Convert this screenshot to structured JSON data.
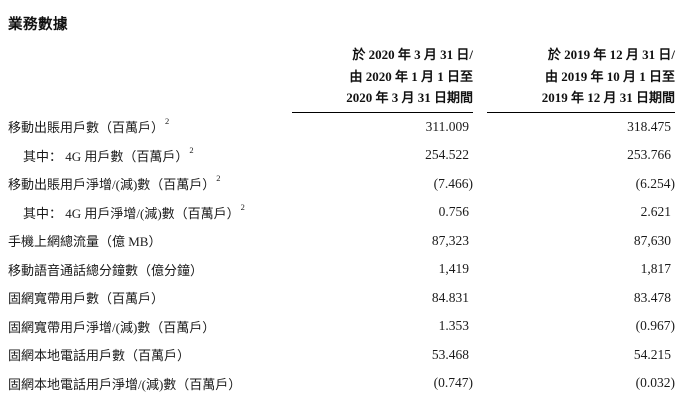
{
  "page": {
    "title": "業務數據",
    "background": "#ffffff",
    "text_color": "#111111"
  },
  "table": {
    "columns": [
      {
        "id": "as-of-2020-03-31",
        "header_lines": [
          "於 2020 年 3 月 31 日/",
          "由 2020 年 1 月 1 日至",
          "2020 年 3 月 31 日期間"
        ]
      },
      {
        "id": "as-of-2019-12-31",
        "header_lines": [
          "於 2019 年 12 月 31 日/",
          "由 2019 年 10 月 1 日至",
          "2019 年 12 月 31 日期間"
        ]
      }
    ],
    "rows": [
      {
        "label": "移動出賬用戶數（百萬戶）",
        "footnote_ref": "2",
        "indent": false,
        "values": [
          "311.009",
          "318.475"
        ]
      },
      {
        "label": "其中： 4G 用戶數（百萬戶）",
        "footnote_ref": "2",
        "indent": true,
        "values": [
          "254.522",
          "253.766"
        ]
      },
      {
        "label": "移動出賬用戶淨增/(減)數（百萬戶）",
        "footnote_ref": "2",
        "indent": false,
        "values": [
          "(7.466)",
          "(6.254)"
        ]
      },
      {
        "label": "其中： 4G 用戶淨增/(減)數（百萬戶）",
        "footnote_ref": "2",
        "indent": true,
        "values": [
          "0.756",
          "2.621"
        ]
      },
      {
        "label": "手機上網總流量（億 MB）",
        "footnote_ref": "",
        "indent": false,
        "values": [
          "87,323",
          "87,630"
        ]
      },
      {
        "label": "移動語音通話總分鐘數（億分鐘）",
        "footnote_ref": "",
        "indent": false,
        "values": [
          "1,419",
          "1,817"
        ]
      },
      {
        "label": "固網寬帶用戶數（百萬戶）",
        "footnote_ref": "",
        "indent": false,
        "values": [
          "84.831",
          "83.478"
        ]
      },
      {
        "label": "固網寬帶用戶淨增/(減)數（百萬戶）",
        "footnote_ref": "",
        "indent": false,
        "values": [
          "1.353",
          "(0.967)"
        ]
      },
      {
        "label": "固網本地電話用戶數（百萬戶）",
        "footnote_ref": "",
        "indent": false,
        "values": [
          "53.468",
          "54.215"
        ]
      },
      {
        "label": "固網本地電話用戶淨增/(減)數（百萬戶）",
        "footnote_ref": "",
        "indent": false,
        "values": [
          "(0.747)",
          "(0.032)"
        ]
      }
    ]
  }
}
